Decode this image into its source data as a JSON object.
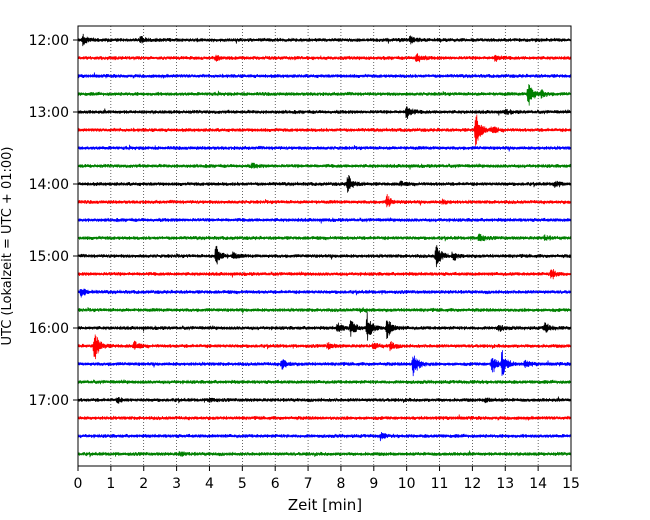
{
  "chart_data": {
    "type": "line",
    "title": "",
    "xlabel": "Zeit  [min]",
    "ylabel": "UTC (Lokalzeit = UTC + 01:00)",
    "xlim": [
      0,
      15
    ],
    "x_ticks": [
      "0",
      "1",
      "2",
      "3",
      "4",
      "5",
      "6",
      "7",
      "8",
      "9",
      "10",
      "11",
      "12",
      "13",
      "14",
      "15"
    ],
    "y_ticks": [
      "12:00",
      "13:00",
      "14:00",
      "15:00",
      "16:00",
      "17:00"
    ],
    "grid": "vertical dotted at each minute",
    "trace_colors": [
      "#000000",
      "#ff0000",
      "#0000ff",
      "#008000"
    ],
    "traces": [
      {
        "start": "12:00",
        "color": "#000000",
        "events": [
          [
            0.15,
            0.5
          ],
          [
            1.9,
            0.3
          ],
          [
            10.1,
            0.3
          ]
        ]
      },
      {
        "start": "12:15",
        "color": "#ff0000",
        "events": [
          [
            4.2,
            0.2
          ],
          [
            10.3,
            0.5
          ],
          [
            12.7,
            0.3
          ]
        ]
      },
      {
        "start": "12:30",
        "color": "#0000ff",
        "events": []
      },
      {
        "start": "12:45",
        "color": "#008000",
        "events": [
          [
            13.7,
            1.2
          ],
          [
            14.1,
            0.3
          ]
        ]
      },
      {
        "start": "13:00",
        "color": "#000000",
        "events": [
          [
            10.0,
            0.7
          ],
          [
            13.0,
            0.2
          ]
        ]
      },
      {
        "start": "13:15",
        "color": "#ff0000",
        "events": [
          [
            12.1,
            1.8
          ],
          [
            12.6,
            0.3
          ]
        ]
      },
      {
        "start": "13:30",
        "color": "#0000ff",
        "events": []
      },
      {
        "start": "13:45",
        "color": "#008000",
        "events": [
          [
            5.3,
            0.2
          ]
        ]
      },
      {
        "start": "14:00",
        "color": "#000000",
        "events": [
          [
            8.2,
            0.9
          ],
          [
            9.8,
            0.2
          ],
          [
            14.5,
            0.3
          ]
        ]
      },
      {
        "start": "14:15",
        "color": "#ff0000",
        "events": [
          [
            9.4,
            0.6
          ],
          [
            11.1,
            0.2
          ]
        ]
      },
      {
        "start": "14:30",
        "color": "#0000ff",
        "events": []
      },
      {
        "start": "14:45",
        "color": "#008000",
        "events": [
          [
            12.2,
            0.4
          ],
          [
            14.2,
            0.2
          ]
        ]
      },
      {
        "start": "15:00",
        "color": "#000000",
        "events": [
          [
            4.2,
            1.0
          ],
          [
            4.7,
            0.3
          ],
          [
            10.9,
            1.2
          ],
          [
            11.4,
            0.4
          ]
        ]
      },
      {
        "start": "15:15",
        "color": "#ff0000",
        "events": [
          [
            14.4,
            0.5
          ]
        ]
      },
      {
        "start": "15:30",
        "color": "#0000ff",
        "events": [
          [
            0.1,
            0.5
          ]
        ]
      },
      {
        "start": "15:45",
        "color": "#008000",
        "events": [
          [
            8.6,
            0.2
          ]
        ]
      },
      {
        "start": "16:00",
        "color": "#000000",
        "events": [
          [
            7.9,
            0.5
          ],
          [
            8.3,
            0.8
          ],
          [
            8.8,
            1.3
          ],
          [
            9.4,
            1.0
          ],
          [
            12.8,
            0.3
          ],
          [
            14.2,
            0.5
          ]
        ]
      },
      {
        "start": "16:15",
        "color": "#ff0000",
        "events": [
          [
            0.5,
            1.4
          ],
          [
            1.7,
            0.4
          ],
          [
            7.6,
            0.3
          ],
          [
            9.0,
            0.3
          ],
          [
            9.5,
            0.4
          ]
        ]
      },
      {
        "start": "16:30",
        "color": "#0000ff",
        "events": [
          [
            6.2,
            0.5
          ],
          [
            10.2,
            1.4
          ],
          [
            12.6,
            1.0
          ],
          [
            12.9,
            1.2
          ],
          [
            13.6,
            0.3
          ]
        ]
      },
      {
        "start": "16:45",
        "color": "#008000",
        "events": []
      },
      {
        "start": "17:00",
        "color": "#000000",
        "events": [
          [
            1.2,
            0.2
          ],
          [
            4.0,
            0.2
          ],
          [
            12.4,
            0.2
          ]
        ]
      },
      {
        "start": "17:15",
        "color": "#ff0000",
        "events": []
      },
      {
        "start": "17:30",
        "color": "#0000ff",
        "events": [
          [
            9.2,
            0.3
          ]
        ]
      },
      {
        "start": "17:45",
        "color": "#008000",
        "events": [
          [
            3.1,
            0.2
          ]
        ]
      }
    ]
  }
}
